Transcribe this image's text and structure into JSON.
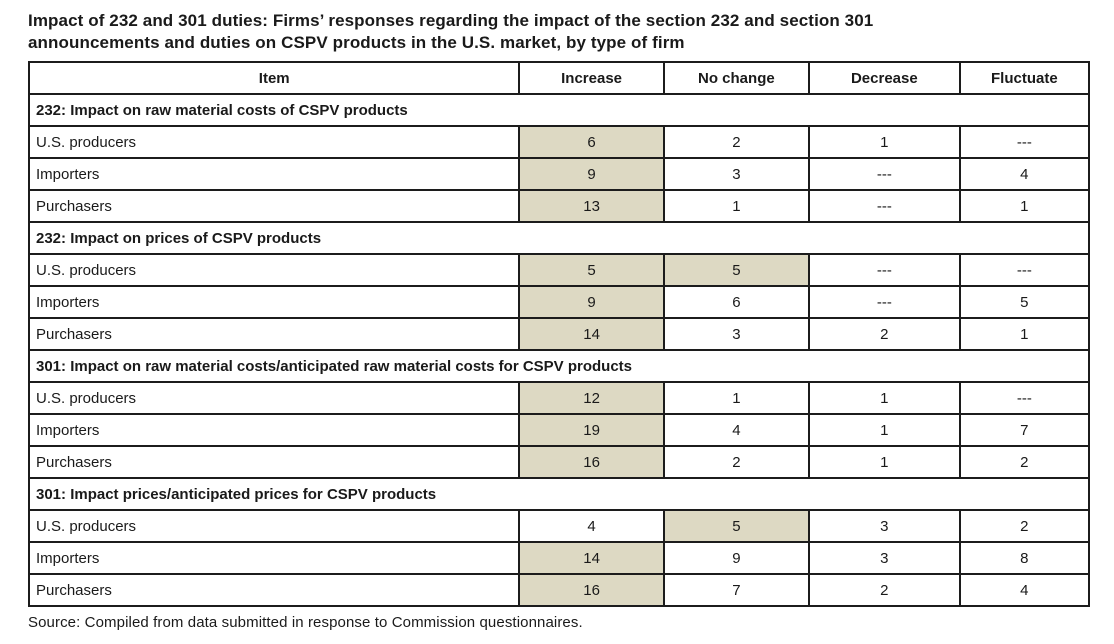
{
  "title": "Impact of 232 and 301 duties: Firms’ responses regarding the impact of the section 232 and section 301 announcements and duties on CSPV products in the U.S. market, by type of firm",
  "source_note": "Source: Compiled from data submitted in response to Commission questionnaires.",
  "colors": {
    "highlight": "#ddd9c3",
    "border": "#1c1c1c",
    "text": "#1a1a1a"
  },
  "chart_data": {
    "type": "table",
    "columns": [
      "Item",
      "Increase",
      "No change",
      "Decrease",
      "Fluctuate"
    ],
    "no_response_marker": "---",
    "sections": [
      {
        "header": "232: Impact on raw material costs of CSPV products",
        "rows": [
          {
            "item": "U.S. producers",
            "values": [
              "6",
              "2",
              "1",
              "---"
            ],
            "highlight": [
              true,
              false,
              false,
              false
            ]
          },
          {
            "item": "Importers",
            "values": [
              "9",
              "3",
              "---",
              "4"
            ],
            "highlight": [
              true,
              false,
              false,
              false
            ]
          },
          {
            "item": "Purchasers",
            "values": [
              "13",
              "1",
              "---",
              "1"
            ],
            "highlight": [
              true,
              false,
              false,
              false
            ]
          }
        ]
      },
      {
        "header": "232: Impact on prices of CSPV products",
        "rows": [
          {
            "item": "U.S. producers",
            "values": [
              "5",
              "5",
              "---",
              "---"
            ],
            "highlight": [
              true,
              true,
              false,
              false
            ]
          },
          {
            "item": "Importers",
            "values": [
              "9",
              "6",
              "---",
              "5"
            ],
            "highlight": [
              true,
              false,
              false,
              false
            ]
          },
          {
            "item": "Purchasers",
            "values": [
              "14",
              "3",
              "2",
              "1"
            ],
            "highlight": [
              true,
              false,
              false,
              false
            ]
          }
        ]
      },
      {
        "header": "301: Impact on raw material costs/anticipated raw material costs for CSPV products",
        "rows": [
          {
            "item": "U.S. producers",
            "values": [
              "12",
              "1",
              "1",
              "---"
            ],
            "highlight": [
              true,
              false,
              false,
              false
            ]
          },
          {
            "item": "Importers",
            "values": [
              "19",
              "4",
              "1",
              "7"
            ],
            "highlight": [
              true,
              false,
              false,
              false
            ]
          },
          {
            "item": "Purchasers",
            "values": [
              "16",
              "2",
              "1",
              "2"
            ],
            "highlight": [
              true,
              false,
              false,
              false
            ]
          }
        ]
      },
      {
        "header": "301: Impact prices/anticipated prices for CSPV products",
        "rows": [
          {
            "item": "U.S. producers",
            "values": [
              "4",
              "5",
              "3",
              "2"
            ],
            "highlight": [
              false,
              true,
              false,
              false
            ]
          },
          {
            "item": "Importers",
            "values": [
              "14",
              "9",
              "3",
              "8"
            ],
            "highlight": [
              true,
              false,
              false,
              false
            ]
          },
          {
            "item": "Purchasers",
            "values": [
              "16",
              "7",
              "2",
              "4"
            ],
            "highlight": [
              true,
              false,
              false,
              false
            ]
          }
        ]
      }
    ]
  }
}
